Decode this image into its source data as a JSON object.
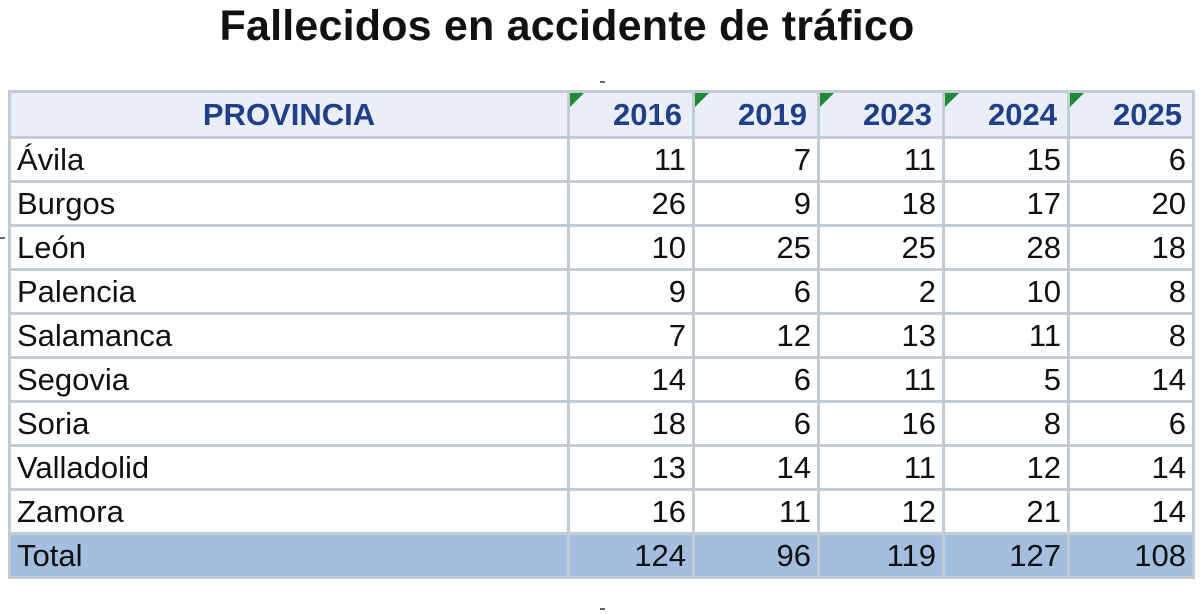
{
  "chart_data": {
    "type": "table",
    "title": "Fallecidos en accidente de tráfico",
    "columns": [
      "PROVINCIA",
      "2016",
      "2019",
      "2023",
      "2024",
      "2025"
    ],
    "rows": [
      {
        "name": "Ávila",
        "values": [
          11,
          7,
          11,
          15,
          6
        ]
      },
      {
        "name": "Burgos",
        "values": [
          26,
          9,
          18,
          17,
          20
        ]
      },
      {
        "name": "León",
        "values": [
          10,
          25,
          25,
          28,
          18
        ]
      },
      {
        "name": "Palencia",
        "values": [
          9,
          6,
          2,
          10,
          8
        ]
      },
      {
        "name": "Salamanca",
        "values": [
          7,
          12,
          13,
          11,
          8
        ]
      },
      {
        "name": "Segovia",
        "values": [
          14,
          6,
          11,
          5,
          14
        ]
      },
      {
        "name": "Soria",
        "values": [
          18,
          6,
          16,
          8,
          6
        ]
      },
      {
        "name": "Valladolid",
        "values": [
          13,
          14,
          11,
          12,
          14
        ]
      },
      {
        "name": "Zamora",
        "values": [
          16,
          11,
          12,
          21,
          14
        ]
      }
    ],
    "total": {
      "name": "Total",
      "values": [
        124,
        96,
        119,
        127,
        108
      ]
    },
    "colors": {
      "header_bg": "#e9eef7",
      "header_text": "#1f3f86",
      "total_bg": "#a3bede",
      "flag": "#1e8a35",
      "grid": "#c3cbd3"
    }
  }
}
